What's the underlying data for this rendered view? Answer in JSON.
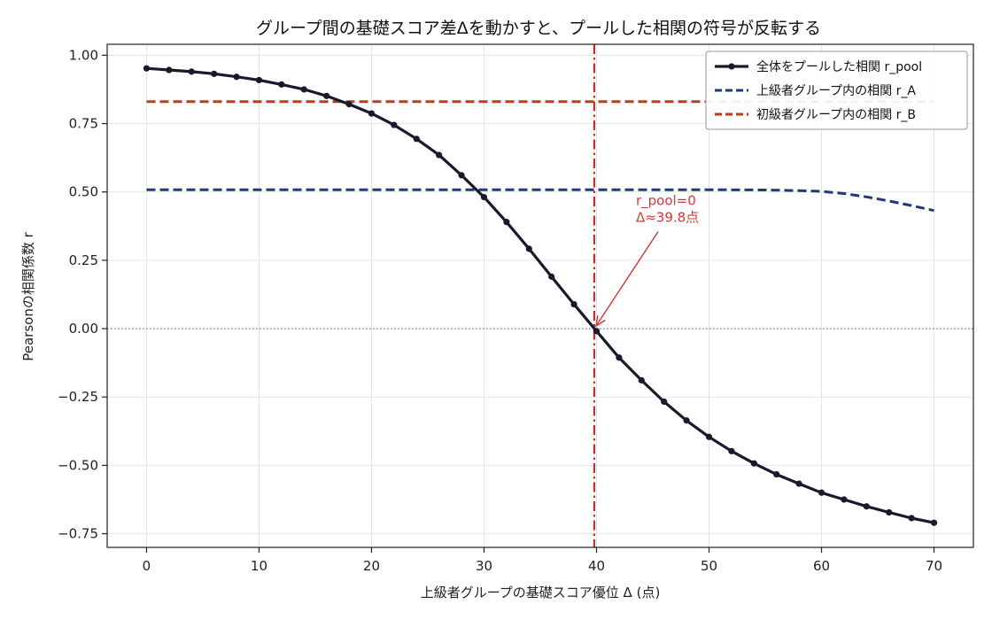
{
  "chart_data": {
    "type": "line",
    "title": "グループ間の基礎スコア差Δを動かすと、プールした相関の符号が反転する",
    "xlabel": "上級者グループの基礎スコア優位 Δ (点)",
    "ylabel": "Pearsonの相関係数 r",
    "xlim": [
      -3.5,
      73.5
    ],
    "ylim": [
      -0.8,
      1.04
    ],
    "x_ticks": [
      0,
      10,
      20,
      30,
      40,
      50,
      60,
      70
    ],
    "x_tick_labels": [
      "0",
      "10",
      "20",
      "30",
      "40",
      "50",
      "60",
      "70"
    ],
    "y_ticks": [
      1.0,
      0.75,
      0.5,
      0.25,
      0.0,
      -0.25,
      -0.5,
      -0.75
    ],
    "y_tick_labels": [
      "1.00",
      "0.75",
      "0.50",
      "0.25",
      "0.00",
      "−0.25",
      "−0.50",
      "−0.75"
    ],
    "grid": true,
    "legend_position": "top-right",
    "series": [
      {
        "name": "全体をプールした相関 r_pool",
        "color": "#161a2b",
        "style": "solid-markers",
        "x": [
          0,
          2,
          4,
          6,
          8,
          10,
          12,
          14,
          16,
          18,
          20,
          22,
          24,
          26,
          28,
          30,
          32,
          34,
          36,
          38,
          40,
          42,
          44,
          46,
          48,
          50,
          52,
          54,
          56,
          58,
          60,
          62,
          64,
          66,
          68,
          70
        ],
        "y": [
          0.952,
          0.946,
          0.94,
          0.932,
          0.921,
          0.909,
          0.893,
          0.875,
          0.851,
          0.821,
          0.787,
          0.745,
          0.694,
          0.635,
          0.561,
          0.481,
          0.39,
          0.292,
          0.19,
          0.089,
          -0.009,
          -0.106,
          -0.189,
          -0.267,
          -0.336,
          -0.396,
          -0.448,
          -0.493,
          -0.533,
          -0.567,
          -0.6,
          -0.625,
          -0.65,
          -0.672,
          -0.693,
          -0.71
        ]
      },
      {
        "name": "上級者グループ内の相関 r_A",
        "color": "#1f3a78",
        "style": "dashed",
        "x": [
          0,
          10,
          20,
          30,
          40,
          50,
          55,
          58,
          60,
          62,
          64,
          66,
          68,
          70
        ],
        "y": [
          0.508,
          0.508,
          0.508,
          0.508,
          0.508,
          0.508,
          0.507,
          0.505,
          0.502,
          0.494,
          0.482,
          0.467,
          0.45,
          0.432
        ]
      },
      {
        "name": "初級者グループ内の相関 r_B",
        "color": "#b5401b",
        "style": "dashed",
        "x": [
          0,
          10,
          20,
          30,
          40,
          50,
          60,
          70
        ],
        "y": [
          0.83,
          0.83,
          0.83,
          0.83,
          0.83,
          0.83,
          0.83,
          0.83
        ]
      }
    ],
    "vline": {
      "x": 39.8,
      "color": "#c92a2a",
      "style": "dashdot"
    },
    "hline": {
      "y": 0.0,
      "color": "#888888",
      "style": "dotted"
    },
    "annotation": {
      "line1": "r_pool=0",
      "line2": "Δ≈39.8点",
      "point": [
        39.8,
        0.0
      ],
      "text_at": [
        43.5,
        0.4
      ],
      "color": "#d03a3a"
    }
  }
}
